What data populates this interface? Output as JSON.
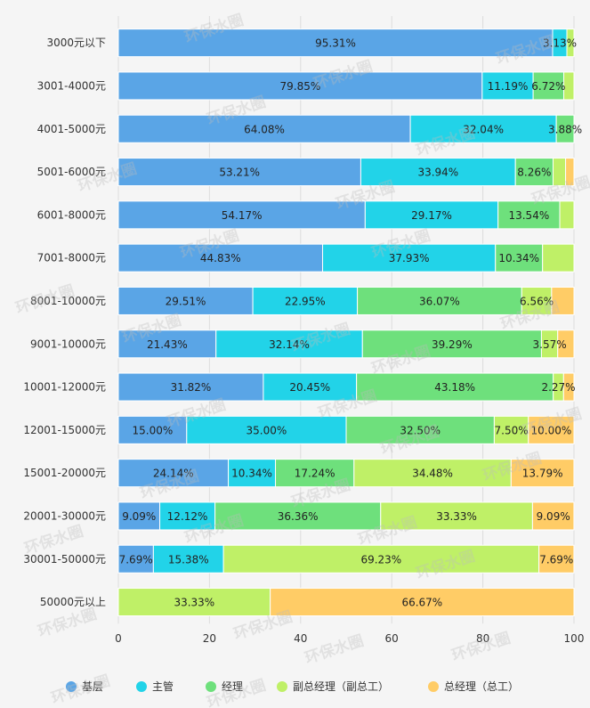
{
  "chart_data": {
    "type": "bar",
    "orientation": "horizontal",
    "stacked": true,
    "categories": [
      "3000元以下",
      "3001-4000元",
      "4001-5000元",
      "5001-6000元",
      "6001-8000元",
      "7001-8000元",
      "8001-10000元",
      "9001-10000元",
      "10001-12000元",
      "12001-15000元",
      "15001-20000元",
      "20001-30000元",
      "30001-50000元",
      "50000元以上"
    ],
    "series": [
      {
        "name": "基层",
        "color": "#5aa5e6",
        "values": [
          95.31,
          79.85,
          64.08,
          53.21,
          54.17,
          44.83,
          29.51,
          21.43,
          31.82,
          15.0,
          24.14,
          9.09,
          7.69,
          0
        ]
      },
      {
        "name": "主管",
        "color": "#22d3e8",
        "values": [
          3.13,
          11.19,
          32.04,
          33.94,
          29.17,
          37.93,
          22.95,
          32.14,
          20.45,
          35.0,
          10.34,
          12.12,
          15.38,
          0
        ]
      },
      {
        "name": "经理",
        "color": "#6ee07c",
        "values": [
          0,
          6.72,
          3.88,
          8.26,
          13.54,
          10.34,
          36.07,
          39.29,
          43.18,
          32.5,
          17.24,
          36.36,
          0,
          0
        ]
      },
      {
        "name": "副总经理（副总工）",
        "color": "#bff067",
        "values": [
          1.56,
          2.24,
          0,
          2.75,
          3.12,
          6.9,
          6.56,
          3.57,
          2.27,
          7.5,
          34.48,
          33.33,
          69.23,
          33.33
        ]
      },
      {
        "name": "总经理（总工）",
        "color": "#ffcc66",
        "values": [
          0,
          0,
          0,
          2.75,
          0,
          0,
          4.91,
          3.57,
          2.28,
          10.0,
          13.79,
          9.09,
          7.69,
          66.67
        ]
      }
    ],
    "value_labels": [
      [
        "95.31%",
        "3.13%",
        "",
        "",
        ""
      ],
      [
        "79.85%",
        "11.19%",
        "6.72%",
        "",
        ""
      ],
      [
        "64.08%",
        "32.04%",
        "3.88%",
        "",
        ""
      ],
      [
        "53.21%",
        "33.94%",
        "8.26%",
        "",
        ""
      ],
      [
        "54.17%",
        "29.17%",
        "13.54%",
        "",
        ""
      ],
      [
        "44.83%",
        "37.93%",
        "10.34%",
        "",
        ""
      ],
      [
        "29.51%",
        "22.95%",
        "36.07%",
        "6.56%",
        ""
      ],
      [
        "21.43%",
        "32.14%",
        "39.29%",
        "3.57%",
        ""
      ],
      [
        "31.82%",
        "20.45%",
        "43.18%",
        "2.27%",
        ""
      ],
      [
        "15.00%",
        "35.00%",
        "32.50%",
        "7.50%",
        "10.00%"
      ],
      [
        "24.14%",
        "10.34%",
        "17.24%",
        "34.48%",
        "13.79%"
      ],
      [
        "9.09%",
        "12.12%",
        "36.36%",
        "33.33%",
        "9.09%"
      ],
      [
        "7.69%",
        "15.38%",
        "",
        "69.23%",
        "7.69%"
      ],
      [
        "",
        "",
        "",
        "33.33%",
        "66.67%"
      ]
    ],
    "xlim": [
      0,
      100
    ],
    "xticks": [
      0,
      20,
      40,
      60,
      80,
      100
    ],
    "title": "",
    "xlabel": "",
    "ylabel": "",
    "legend_position": "bottom",
    "watermark": "环保水圈"
  }
}
